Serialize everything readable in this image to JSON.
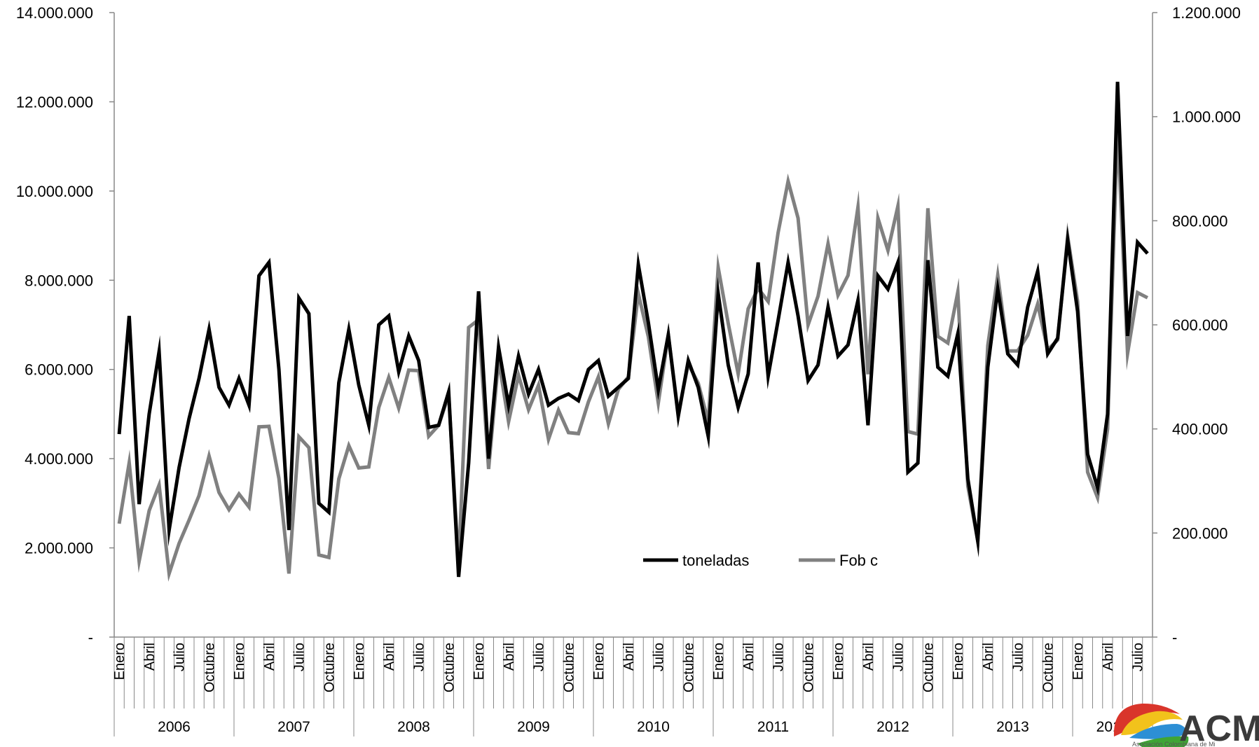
{
  "chart_data": {
    "type": "line",
    "title": "",
    "xlabel": "",
    "ylabel": "",
    "y_left": {
      "range": [
        0,
        14000000
      ],
      "tick_values": [
        0,
        2000000,
        4000000,
        6000000,
        8000000,
        10000000,
        12000000,
        14000000
      ],
      "tick_labels": [
        "-",
        "2.000.000",
        "4.000.000",
        "6.000.000",
        "8.000.000",
        "10.000.000",
        "12.000.000",
        "14.000.000"
      ]
    },
    "y_right": {
      "range": [
        0,
        1200000
      ],
      "tick_values": [
        0,
        200000,
        400000,
        600000,
        800000,
        1000000,
        1200000
      ],
      "tick_labels": [
        "-",
        "200.000",
        "400.000",
        "600.000",
        "800.000",
        "1.000.000",
        "1.200.000"
      ]
    },
    "x_month_labels": [
      "Enero",
      "Abril",
      "Julio",
      "Octubre"
    ],
    "years": [
      "2006",
      "2007",
      "2008",
      "2009",
      "2010",
      "2011",
      "2012",
      "2013",
      "2014"
    ],
    "months_in_last_year": 8,
    "grid": false,
    "legend_position": "bottom-center",
    "series": [
      {
        "name": "toneladas",
        "axis": "left",
        "color": "#000000",
        "values": [
          4550000,
          7200000,
          2980000,
          5000000,
          6400000,
          2400000,
          3800000,
          4900000,
          5800000,
          6900000,
          5600000,
          5200000,
          5800000,
          5200000,
          8100000,
          8400000,
          6000000,
          2400000,
          7600000,
          7250000,
          3000000,
          2800000,
          5700000,
          6900000,
          5650000,
          4750000,
          7000000,
          7200000,
          5950000,
          6750000,
          6200000,
          4700000,
          4750000,
          5500000,
          1350000,
          3900000,
          7750000,
          4000000,
          6500000,
          5200000,
          6300000,
          5450000,
          6000000,
          5200000,
          5350000,
          5450000,
          5300000,
          6000000,
          6200000,
          5400000,
          5600000,
          5800000,
          8350000,
          7050000,
          5550000,
          6780000,
          4950000,
          6200000,
          5600000,
          4500000,
          7700000,
          6100000,
          5150000,
          5900000,
          8400000,
          5850000,
          7100000,
          8400000,
          7200000,
          5750000,
          6100000,
          7400000,
          6300000,
          6550000,
          7550000,
          4750000,
          8100000,
          7800000,
          8400000,
          3700000,
          3900000,
          8450000,
          6050000,
          5850000,
          6800000,
          3550000,
          2150000,
          6050000,
          7800000,
          6350000,
          6100000,
          7400000,
          8200000,
          6350000,
          6700000,
          8900000,
          7300000,
          4100000,
          3350000,
          5000000,
          12450000,
          6750000,
          8850000,
          8600000
        ]
      },
      {
        "name": "Fob c",
        "axis": "right",
        "color": "#808080",
        "values": [
          218000,
          335000,
          146000,
          243000,
          292000,
          122000,
          180000,
          225000,
          272000,
          348000,
          278000,
          245000,
          275000,
          250000,
          404000,
          405000,
          305000,
          122000,
          385000,
          364000,
          158000,
          153000,
          304000,
          368000,
          325000,
          327000,
          441000,
          499000,
          440000,
          513000,
          512000,
          386000,
          407000,
          465000,
          137000,
          595000,
          610000,
          323000,
          533000,
          414000,
          503000,
          437000,
          484000,
          380000,
          436000,
          393000,
          391000,
          452000,
          500000,
          410000,
          476000,
          500000,
          660000,
          577000,
          450000,
          580000,
          430000,
          525000,
          488000,
          414000,
          710000,
          603000,
          506000,
          631000,
          670000,
          645000,
          777000,
          876000,
          805000,
          600000,
          655000,
          756000,
          657000,
          695000,
          826000,
          505000,
          805000,
          743000,
          828000,
          395000,
          390000,
          824000,
          578000,
          565000,
          663000,
          290000,
          185000,
          560000,
          695000,
          550000,
          550000,
          580000,
          640000,
          552000,
          571000,
          770000,
          645000,
          317000,
          268000,
          400000,
          980000,
          545000,
          662000,
          652000
        ]
      }
    ]
  },
  "logo": {
    "text": "ACM",
    "subtext": "Asociación Colombiana de Mi"
  }
}
